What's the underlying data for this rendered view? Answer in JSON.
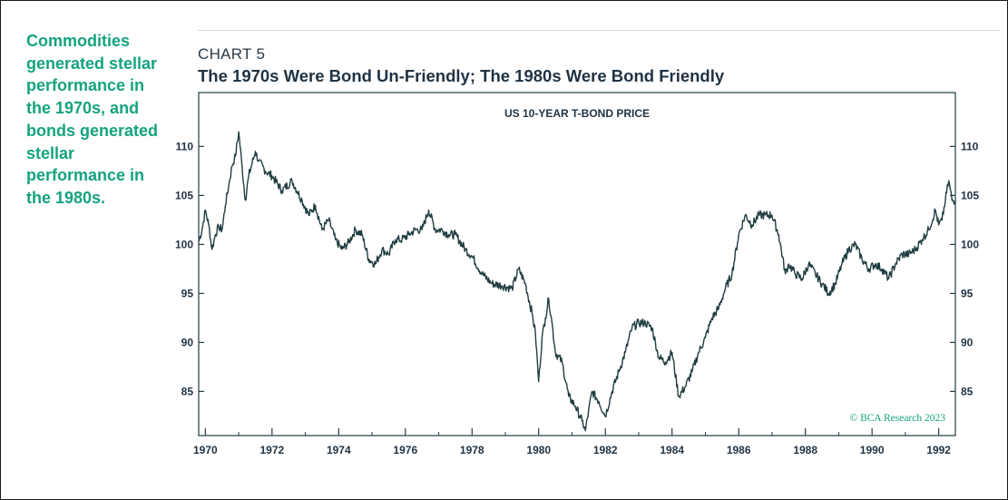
{
  "sidebar": {
    "text": "Commodities generated stellar performance in the 1970s, and bonds generated stellar performance in the 1980s."
  },
  "header": {
    "chart_label": "CHART 5",
    "title": "The 1970s Were Bond Un-Friendly; The 1980s Were Bond Friendly"
  },
  "colors": {
    "accent": "#14a37f",
    "line": "#1f3d40",
    "text": "#1f3242"
  },
  "chart_data": {
    "type": "line",
    "subtitle": "US 10-YEAR T-BOND PRICE",
    "credit": "© BCA Research 2023",
    "xlim": [
      1969.8,
      1992.5
    ],
    "ylim": [
      80.5,
      115.5
    ],
    "y_ticks": [
      85,
      90,
      95,
      100,
      105,
      110
    ],
    "x_ticks": [
      1970,
      1972,
      1974,
      1976,
      1978,
      1980,
      1982,
      1984,
      1986,
      1988,
      1990,
      1992
    ],
    "x_tick_labels": [
      "1970",
      "1972",
      "1974",
      "1976",
      "1978",
      "1980",
      "1982",
      "1984",
      "1986",
      "1988",
      "1990",
      "1992"
    ],
    "y_axes": [
      "left",
      "right"
    ],
    "grid": false,
    "series": [
      {
        "x": [
          1969.8,
          1969.9,
          1970.0,
          1970.1,
          1970.2,
          1970.3,
          1970.4,
          1970.5,
          1970.6,
          1970.7,
          1970.8,
          1970.9,
          1971.0,
          1971.1,
          1971.2,
          1971.3,
          1971.5,
          1971.6,
          1971.8,
          1972.0,
          1972.3,
          1972.6,
          1972.9,
          1973.1,
          1973.3,
          1973.5,
          1973.7,
          1973.9,
          1974.1,
          1974.3,
          1974.5,
          1974.7,
          1974.9,
          1975.1,
          1975.3,
          1975.5,
          1975.7,
          1975.9,
          1976.1,
          1976.3,
          1976.5,
          1976.7,
          1976.9,
          1977.1,
          1977.3,
          1977.5,
          1977.8,
          1978.0,
          1978.3,
          1978.6,
          1978.9,
          1979.2,
          1979.4,
          1979.6,
          1979.8,
          1979.9,
          1980.0,
          1980.1,
          1980.2,
          1980.3,
          1980.4,
          1980.5,
          1980.7,
          1980.9,
          1981.1,
          1981.3,
          1981.4,
          1981.6,
          1981.8,
          1982.0,
          1982.2,
          1982.4,
          1982.6,
          1982.8,
          1983.0,
          1983.2,
          1983.4,
          1983.6,
          1983.8,
          1984.0,
          1984.2,
          1984.4,
          1984.6,
          1984.8,
          1985.0,
          1985.2,
          1985.4,
          1985.6,
          1985.8,
          1986.0,
          1986.2,
          1986.4,
          1986.6,
          1986.8,
          1987.0,
          1987.2,
          1987.4,
          1987.5,
          1987.7,
          1987.9,
          1988.1,
          1988.3,
          1988.5,
          1988.7,
          1988.9,
          1989.1,
          1989.3,
          1989.5,
          1989.7,
          1989.9,
          1990.1,
          1990.3,
          1990.5,
          1990.7,
          1990.9,
          1991.1,
          1991.3,
          1991.5,
          1991.7,
          1991.9,
          1992.0,
          1992.1,
          1992.2,
          1992.3,
          1992.4,
          1992.5
        ],
        "values": [
          100.3,
          101.5,
          103.5,
          102.0,
          99.5,
          101.0,
          101.8,
          101.5,
          104.0,
          106.0,
          108.0,
          109.0,
          111.5,
          108.0,
          104.5,
          107.0,
          109.5,
          108.5,
          107.5,
          107.0,
          105.5,
          106.5,
          104.5,
          103.0,
          104.0,
          101.5,
          102.5,
          100.5,
          99.5,
          100.2,
          101.5,
          101.0,
          98.5,
          98.0,
          99.5,
          99.0,
          100.5,
          100.5,
          101.0,
          101.5,
          101.5,
          103.5,
          101.5,
          101.5,
          101.0,
          101.0,
          99.5,
          98.8,
          97.0,
          96.0,
          95.8,
          95.5,
          97.5,
          96.0,
          93.0,
          91.0,
          86.0,
          90.5,
          92.5,
          94.5,
          92.0,
          89.0,
          88.0,
          84.5,
          83.5,
          82.0,
          81.0,
          85.0,
          84.0,
          82.5,
          85.0,
          87.0,
          89.0,
          91.5,
          92.0,
          92.0,
          91.5,
          88.5,
          88.0,
          89.0,
          84.5,
          85.5,
          87.0,
          89.0,
          90.5,
          92.5,
          93.5,
          95.5,
          97.0,
          101.0,
          103.0,
          102.0,
          103.0,
          103.0,
          103.0,
          101.0,
          97.0,
          98.0,
          97.0,
          96.5,
          98.0,
          97.0,
          96.0,
          95.0,
          96.0,
          98.0,
          99.5,
          100.0,
          98.5,
          97.5,
          98.0,
          97.5,
          96.5,
          98.0,
          99.0,
          99.0,
          99.5,
          100.5,
          101.5,
          103.5,
          102.0,
          102.5,
          104.5,
          106.5,
          104.5,
          104.5
        ]
      }
    ]
  }
}
